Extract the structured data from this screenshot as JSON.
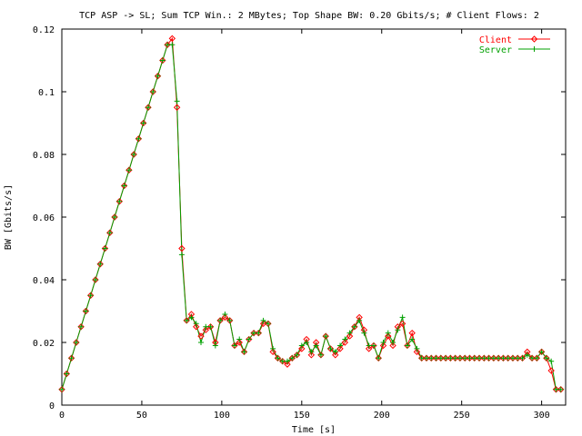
{
  "chart_data": {
    "type": "line",
    "title": "TCP ASP -> SL; Sum TCP Win.: 2 MBytes; Top Shape BW: 0.20 Gbits/s; # Client Flows: 2",
    "xlabel": "Time [s]",
    "ylabel": "BW [Gbits/s]",
    "xlim": [
      0,
      315
    ],
    "ylim": [
      0,
      0.12
    ],
    "xticks": [
      "0",
      "50",
      "100",
      "150",
      "200",
      "250",
      "300"
    ],
    "yticks": [
      "0",
      "0.02",
      "0.04",
      "0.06",
      "0.08",
      "0.1",
      "0.12"
    ],
    "grid": false,
    "legend_position": "top-right",
    "series": [
      {
        "name": "Client",
        "color": "#ff0000",
        "marker": "diamond",
        "x": [
          0,
          3,
          6,
          9,
          12,
          15,
          18,
          21,
          24,
          27,
          30,
          33,
          36,
          39,
          42,
          45,
          48,
          51,
          54,
          57,
          60,
          63,
          66,
          69,
          72,
          75,
          78,
          81,
          84,
          87,
          90,
          93,
          96,
          99,
          102,
          105,
          108,
          111,
          114,
          117,
          120,
          123,
          126,
          129,
          132,
          135,
          138,
          141,
          144,
          147,
          150,
          153,
          156,
          159,
          162,
          165,
          168,
          171,
          174,
          177,
          180,
          183,
          186,
          189,
          192,
          195,
          198,
          201,
          204,
          207,
          210,
          213,
          216,
          219,
          222,
          225,
          228,
          231,
          234,
          237,
          240,
          243,
          246,
          249,
          252,
          255,
          258,
          261,
          264,
          267,
          270,
          273,
          276,
          279,
          282,
          285,
          288,
          291,
          294,
          297,
          300,
          303,
          306,
          309,
          312
        ],
        "y": [
          0.005,
          0.01,
          0.015,
          0.02,
          0.025,
          0.03,
          0.035,
          0.04,
          0.045,
          0.05,
          0.055,
          0.06,
          0.065,
          0.07,
          0.075,
          0.08,
          0.085,
          0.09,
          0.095,
          0.1,
          0.105,
          0.11,
          0.115,
          0.117,
          0.095,
          0.05,
          0.027,
          0.029,
          0.025,
          0.022,
          0.024,
          0.025,
          0.02,
          0.027,
          0.028,
          0.027,
          0.019,
          0.02,
          0.017,
          0.021,
          0.023,
          0.023,
          0.026,
          0.026,
          0.017,
          0.015,
          0.014,
          0.013,
          0.015,
          0.016,
          0.018,
          0.021,
          0.016,
          0.02,
          0.016,
          0.022,
          0.018,
          0.016,
          0.018,
          0.02,
          0.022,
          0.025,
          0.028,
          0.024,
          0.018,
          0.019,
          0.015,
          0.019,
          0.022,
          0.019,
          0.025,
          0.026,
          0.019,
          0.023,
          0.017,
          0.015,
          0.015,
          0.015,
          0.015,
          0.015,
          0.015,
          0.015,
          0.015,
          0.015,
          0.015,
          0.015,
          0.015,
          0.015,
          0.015,
          0.015,
          0.015,
          0.015,
          0.015,
          0.015,
          0.015,
          0.015,
          0.015,
          0.017,
          0.015,
          0.015,
          0.017,
          0.015,
          0.011,
          0.005,
          0.005
        ]
      },
      {
        "name": "Server",
        "color": "#00a000",
        "marker": "plus",
        "x": [
          0,
          3,
          6,
          9,
          12,
          15,
          18,
          21,
          24,
          27,
          30,
          33,
          36,
          39,
          42,
          45,
          48,
          51,
          54,
          57,
          60,
          63,
          66,
          69,
          72,
          75,
          78,
          81,
          84,
          87,
          90,
          93,
          96,
          99,
          102,
          105,
          108,
          111,
          114,
          117,
          120,
          123,
          126,
          129,
          132,
          135,
          138,
          141,
          144,
          147,
          150,
          153,
          156,
          159,
          162,
          165,
          168,
          171,
          174,
          177,
          180,
          183,
          186,
          189,
          192,
          195,
          198,
          201,
          204,
          207,
          210,
          213,
          216,
          219,
          222,
          225,
          228,
          231,
          234,
          237,
          240,
          243,
          246,
          249,
          252,
          255,
          258,
          261,
          264,
          267,
          270,
          273,
          276,
          279,
          282,
          285,
          288,
          291,
          294,
          297,
          300,
          303,
          306,
          309,
          312
        ],
        "y": [
          0.005,
          0.01,
          0.015,
          0.02,
          0.025,
          0.03,
          0.035,
          0.04,
          0.045,
          0.05,
          0.055,
          0.06,
          0.065,
          0.07,
          0.075,
          0.08,
          0.085,
          0.09,
          0.095,
          0.1,
          0.105,
          0.11,
          0.115,
          0.115,
          0.097,
          0.048,
          0.027,
          0.028,
          0.026,
          0.02,
          0.025,
          0.025,
          0.019,
          0.027,
          0.029,
          0.027,
          0.019,
          0.021,
          0.017,
          0.021,
          0.023,
          0.023,
          0.027,
          0.026,
          0.018,
          0.015,
          0.014,
          0.014,
          0.015,
          0.016,
          0.019,
          0.02,
          0.017,
          0.019,
          0.016,
          0.022,
          0.018,
          0.017,
          0.019,
          0.021,
          0.023,
          0.025,
          0.027,
          0.023,
          0.019,
          0.019,
          0.015,
          0.02,
          0.023,
          0.02,
          0.024,
          0.028,
          0.019,
          0.021,
          0.018,
          0.015,
          0.015,
          0.015,
          0.015,
          0.015,
          0.015,
          0.015,
          0.015,
          0.015,
          0.015,
          0.015,
          0.015,
          0.015,
          0.015,
          0.015,
          0.015,
          0.015,
          0.015,
          0.015,
          0.015,
          0.015,
          0.015,
          0.016,
          0.015,
          0.015,
          0.017,
          0.015,
          0.014,
          0.005,
          0.005
        ]
      }
    ]
  }
}
